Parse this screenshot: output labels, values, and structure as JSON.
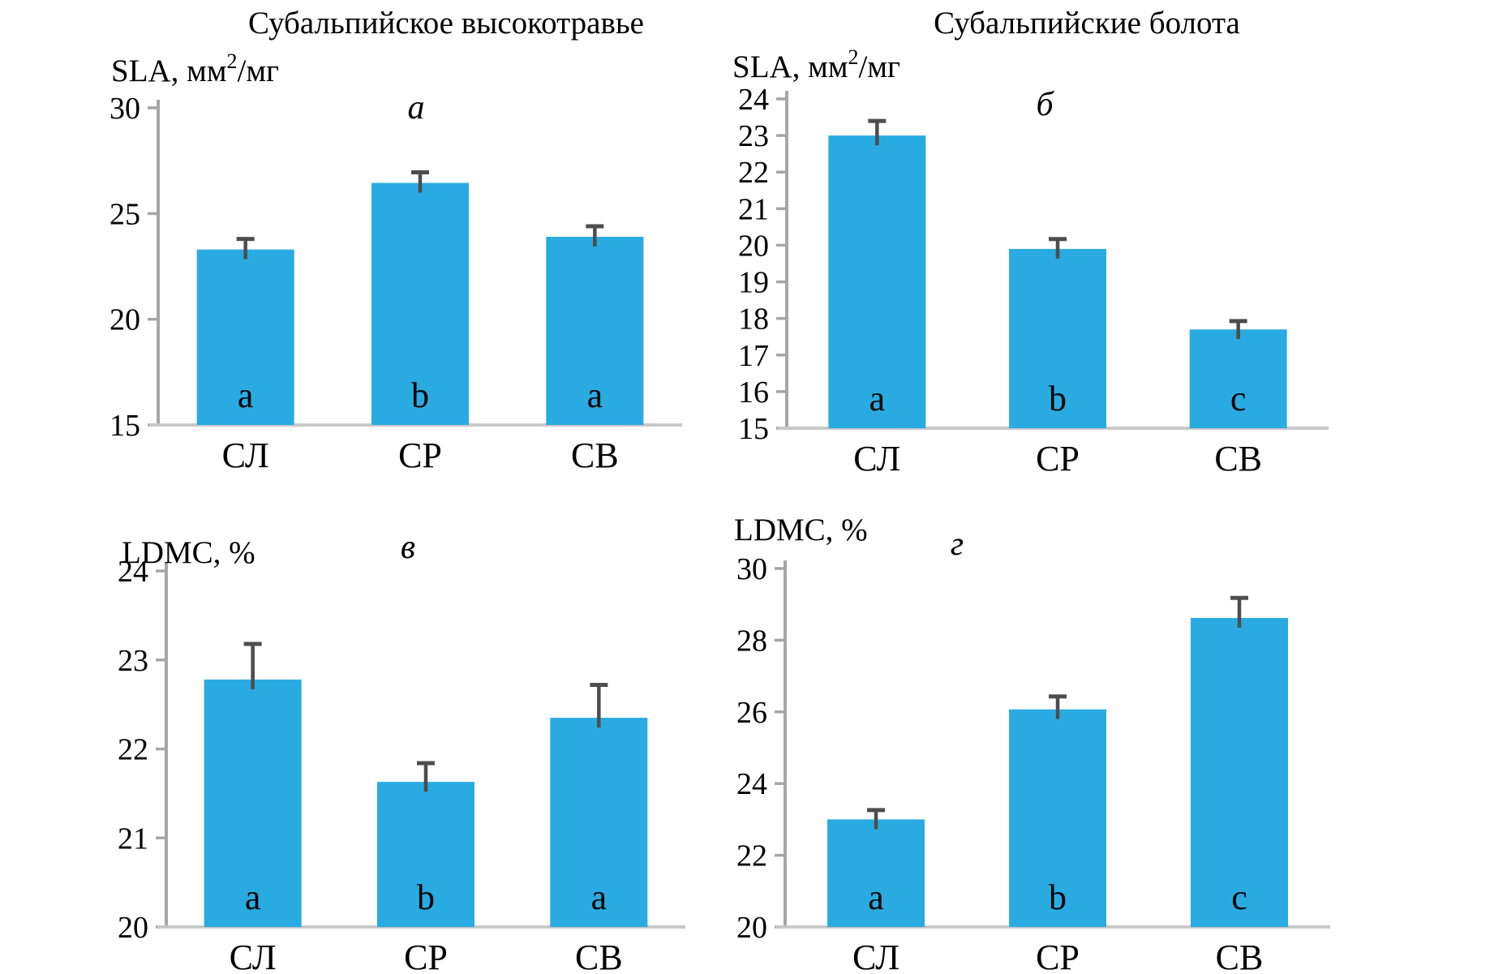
{
  "figure": {
    "column_titles": [
      "Субальпийское высокотравье",
      "Субальпийские болота"
    ],
    "colors": {
      "bar": "#29ABE2",
      "error": "#4D4D4D",
      "axis": "#A6A6A6",
      "baseline": "#C8C8C8",
      "text": "#000000"
    }
  },
  "chart_data": [
    {
      "type": "bar",
      "panel": "top-left",
      "panel_letter": "а",
      "column_title": "Субальпийское высокотравье",
      "ylabel": {
        "pre": "SLA, мм",
        "sup": "2",
        "post": "/мг"
      },
      "categories": [
        "СЛ",
        "СР",
        "СВ"
      ],
      "values": [
        23.3,
        26.45,
        23.9
      ],
      "errors_plus": [
        0.5,
        0.5,
        0.5
      ],
      "sig_letters": [
        "a",
        "b",
        "a"
      ],
      "ylim": [
        15,
        30
      ],
      "yticks": [
        15,
        20,
        25,
        30
      ],
      "grid": false,
      "legend": false
    },
    {
      "type": "bar",
      "panel": "top-right",
      "panel_letter": "б",
      "column_title": "Субальпийские болота",
      "ylabel": {
        "pre": "SLA, мм",
        "sup": "2",
        "post": "/мг"
      },
      "categories": [
        "СЛ",
        "СР",
        "СВ"
      ],
      "values": [
        23.0,
        19.9,
        17.7
      ],
      "errors_plus": [
        0.4,
        0.27,
        0.23
      ],
      "sig_letters": [
        "a",
        "b",
        "c"
      ],
      "ylim": [
        15,
        24
      ],
      "yticks": [
        15,
        16,
        17,
        18,
        19,
        20,
        21,
        22,
        23,
        24
      ],
      "grid": false,
      "legend": false
    },
    {
      "type": "bar",
      "panel": "bottom-left",
      "panel_letter": "в",
      "ylabel": {
        "pre": "LDMC, %",
        "sup": "",
        "post": ""
      },
      "categories": [
        "СЛ",
        "СР",
        "СВ"
      ],
      "values": [
        22.78,
        21.63,
        22.35
      ],
      "errors_plus": [
        0.4,
        0.21,
        0.37
      ],
      "sig_letters": [
        "a",
        "b",
        "a"
      ],
      "ylim": [
        20,
        24
      ],
      "yticks": [
        20,
        21,
        22,
        23,
        24
      ],
      "grid": false,
      "legend": false
    },
    {
      "type": "bar",
      "panel": "bottom-right",
      "panel_letter": "г",
      "ylabel": {
        "pre": "LDMC, %",
        "sup": "",
        "post": ""
      },
      "categories": [
        "СЛ",
        "СР",
        "СВ"
      ],
      "values": [
        23.0,
        26.07,
        28.62
      ],
      "errors_plus": [
        0.26,
        0.36,
        0.56
      ],
      "sig_letters": [
        "a",
        "b",
        "c"
      ],
      "ylim": [
        20,
        30
      ],
      "yticks": [
        20,
        22,
        24,
        26,
        28,
        30
      ],
      "grid": false,
      "legend": false
    }
  ]
}
